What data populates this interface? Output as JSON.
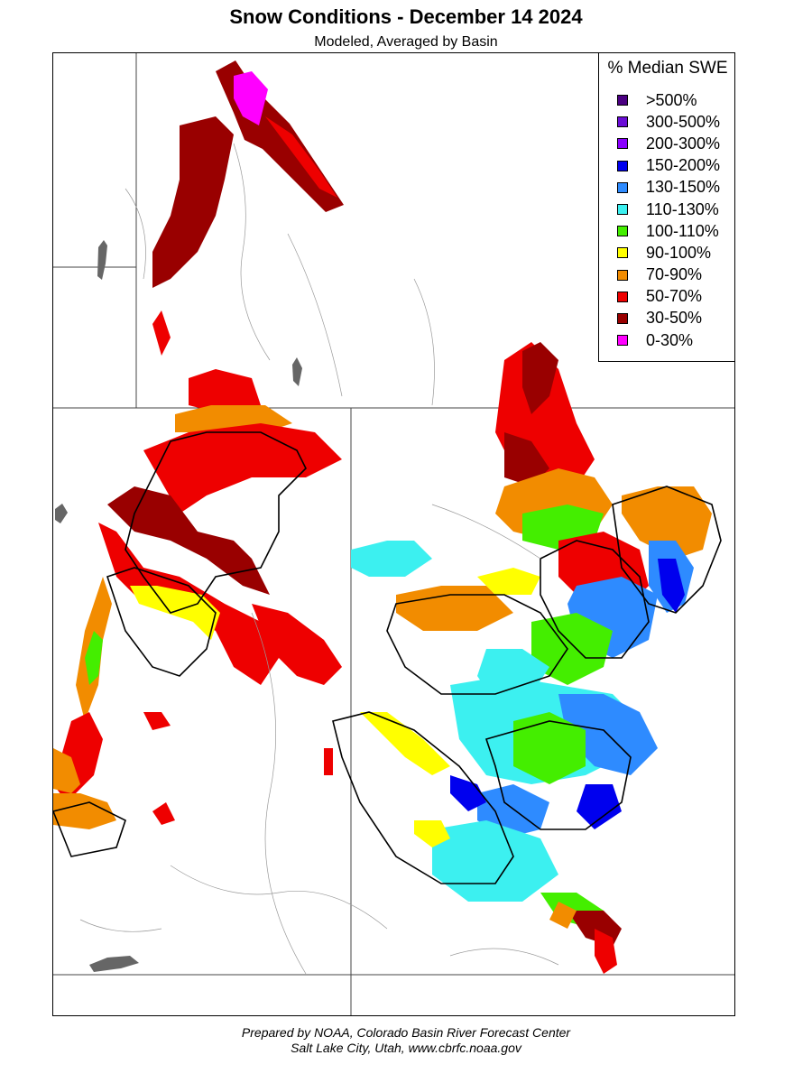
{
  "title": "Snow Conditions - December 14 2024",
  "subtitle": "Modeled, Averaged by Basin",
  "legend": {
    "title": "% Median SWE",
    "items": [
      {
        "label": ">500%",
        "color": "#4b0082"
      },
      {
        "label": "300-500%",
        "color": "#6a0dd6"
      },
      {
        "label": "200-300%",
        "color": "#8a00ff"
      },
      {
        "label": "150-200%",
        "color": "#0000ee"
      },
      {
        "label": "130-150%",
        "color": "#2e8bff"
      },
      {
        "label": "110-130%",
        "color": "#3cf0f0"
      },
      {
        "label": "100-110%",
        "color": "#44ee00"
      },
      {
        "label": "90-100%",
        "color": "#ffff00"
      },
      {
        "label": "70-90%",
        "color": "#f28c00"
      },
      {
        "label": "50-70%",
        "color": "#ee0000"
      },
      {
        "label": "30-50%",
        "color": "#990000"
      },
      {
        "label": "0-30%",
        "color": "#ff00ff"
      }
    ]
  },
  "credits": {
    "line1": "Prepared by NOAA, Colorado Basin River Forecast Center",
    "line2": "Salt Lake City, Utah, www.cbrfc.noaa.gov"
  }
}
